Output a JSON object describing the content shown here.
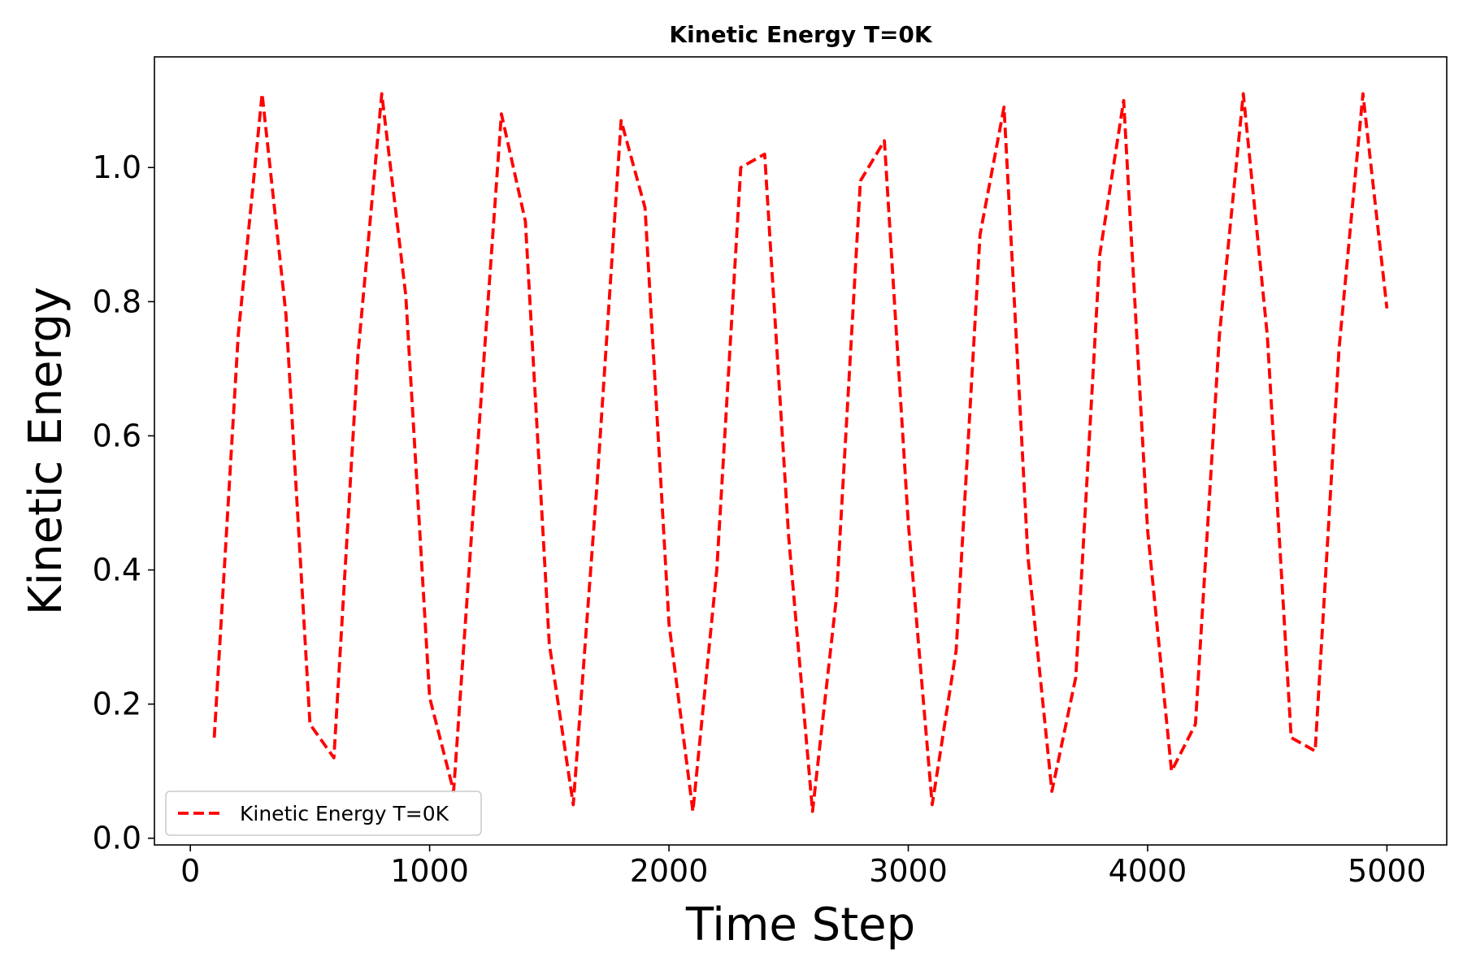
{
  "chart_data": {
    "type": "line",
    "title": "Kinetic Energy T=0K",
    "xlabel": "Time Step",
    "ylabel": "Kinetic Energy",
    "xlim": [
      -150,
      5250
    ],
    "ylim": [
      -0.01,
      1.165
    ],
    "xticks": [
      0,
      1000,
      2000,
      3000,
      4000,
      5000
    ],
    "yticks": [
      0.0,
      0.2,
      0.4,
      0.6,
      0.8,
      1.0
    ],
    "xtick_labels": [
      "0",
      "1000",
      "2000",
      "3000",
      "4000",
      "5000"
    ],
    "ytick_labels": [
      "0.0",
      "0.2",
      "0.4",
      "0.6",
      "0.8",
      "1.0"
    ],
    "grid": false,
    "legend": {
      "position": "lower-left"
    },
    "series": [
      {
        "name": "Kinetic Energy T=0K",
        "color": "#ff0000",
        "line_style": "dashed",
        "x": [
          100,
          200,
          300,
          400,
          500,
          600,
          700,
          800,
          900,
          1000,
          1100,
          1200,
          1300,
          1400,
          1500,
          1600,
          1700,
          1800,
          1900,
          2000,
          2100,
          2200,
          2300,
          2400,
          2500,
          2600,
          2700,
          2800,
          2900,
          3000,
          3100,
          3200,
          3300,
          3400,
          3500,
          3600,
          3700,
          3800,
          3900,
          4000,
          4100,
          4200,
          4300,
          4400,
          4500,
          4600,
          4700,
          4800,
          4900,
          5000
        ],
        "y": [
          0.15,
          0.75,
          1.11,
          0.78,
          0.17,
          0.12,
          0.72,
          1.11,
          0.81,
          0.21,
          0.07,
          0.58,
          1.08,
          0.92,
          0.29,
          0.05,
          0.53,
          1.07,
          0.94,
          0.32,
          0.04,
          0.4,
          1.0,
          1.02,
          0.45,
          0.04,
          0.36,
          0.98,
          1.04,
          0.47,
          0.05,
          0.28,
          0.9,
          1.09,
          0.42,
          0.07,
          0.24,
          0.87,
          1.1,
          0.46,
          0.1,
          0.17,
          0.75,
          1.11,
          0.75,
          0.15,
          0.13,
          0.73,
          1.11,
          0.79
        ]
      }
    ]
  }
}
